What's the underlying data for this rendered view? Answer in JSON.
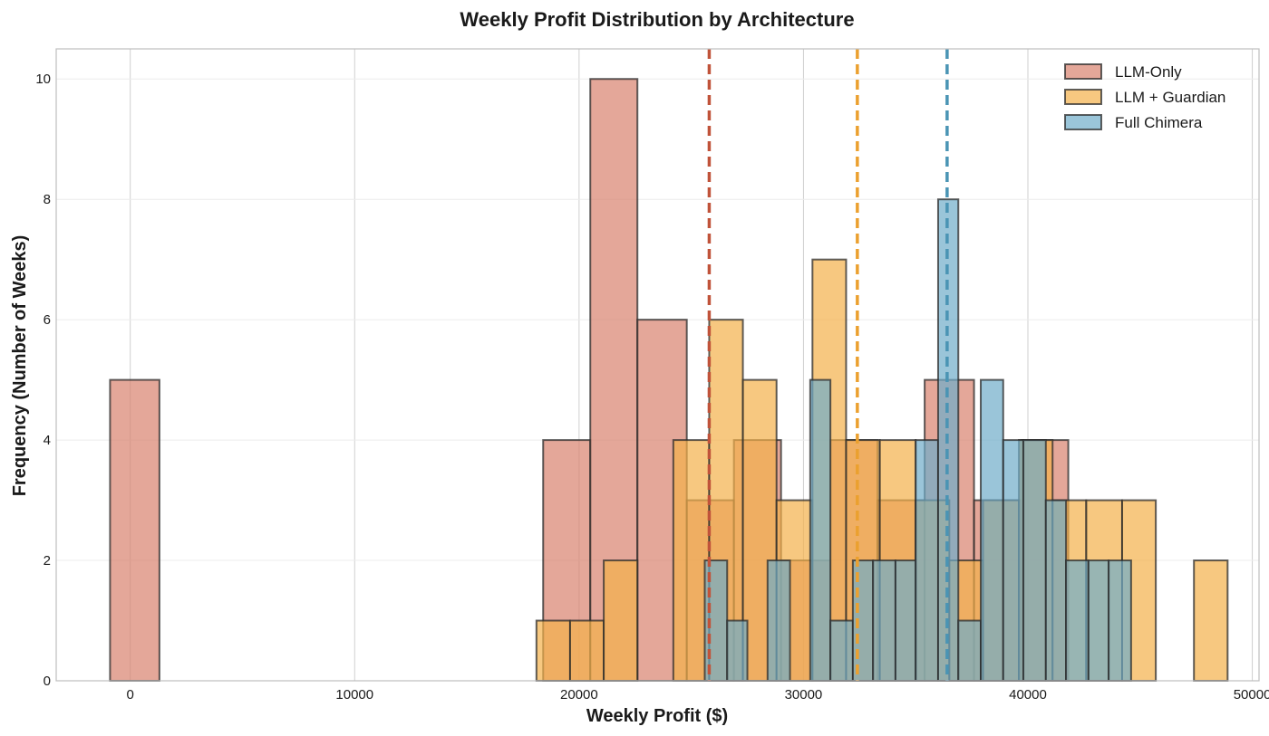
{
  "chart_data": {
    "type": "bar",
    "subtype": "overlapping-histogram",
    "title": "Weekly Profit Distribution by Architecture",
    "xlabel": "Weekly Profit ($)",
    "ylabel": "Frequency (Number of Weeks)",
    "xlim": [
      -3300,
      50300
    ],
    "ylim": [
      0,
      10.5
    ],
    "xticks": [
      0,
      10000,
      20000,
      30000,
      40000,
      50000
    ],
    "yticks": [
      0,
      2,
      4,
      6,
      8,
      10
    ],
    "grid": true,
    "legend_position": "top-right",
    "series": [
      {
        "name": "LLM-Only",
        "color": "#d9826e",
        "mean_line": 25800,
        "mean_color": "#c0533a",
        "bins": [
          {
            "x0": -900,
            "x1": 1300,
            "count": 5
          },
          {
            "x0": 18400,
            "x1": 20500,
            "count": 4
          },
          {
            "x0": 20500,
            "x1": 22600,
            "count": 10
          },
          {
            "x0": 22600,
            "x1": 24800,
            "count": 6
          },
          {
            "x0": 24800,
            "x1": 26900,
            "count": 3
          },
          {
            "x0": 26900,
            "x1": 29000,
            "count": 4
          },
          {
            "x0": 29000,
            "x1": 31200,
            "count": 2
          },
          {
            "x0": 31200,
            "x1": 33300,
            "count": 4
          },
          {
            "x0": 33300,
            "x1": 35400,
            "count": 3
          },
          {
            "x0": 35400,
            "x1": 37600,
            "count": 5
          },
          {
            "x0": 37600,
            "x1": 39700,
            "count": 3
          },
          {
            "x0": 39700,
            "x1": 41800,
            "count": 4
          },
          {
            "x0": 41800,
            "x1": 42000,
            "count": 0
          }
        ]
      },
      {
        "name": "LLM + Guardian",
        "color": "#f4b04a",
        "mean_line": 32400,
        "mean_color": "#eba02f",
        "bins": [
          {
            "x0": 18100,
            "x1": 19600,
            "count": 1
          },
          {
            "x0": 19600,
            "x1": 21100,
            "count": 1
          },
          {
            "x0": 21100,
            "x1": 22600,
            "count": 2
          },
          {
            "x0": 24200,
            "x1": 25800,
            "count": 4
          },
          {
            "x0": 25800,
            "x1": 27300,
            "count": 6
          },
          {
            "x0": 27300,
            "x1": 28800,
            "count": 5
          },
          {
            "x0": 28800,
            "x1": 30400,
            "count": 3
          },
          {
            "x0": 30400,
            "x1": 31900,
            "count": 7
          },
          {
            "x0": 31900,
            "x1": 33400,
            "count": 4
          },
          {
            "x0": 33400,
            "x1": 35000,
            "count": 4
          },
          {
            "x0": 35000,
            "x1": 36500,
            "count": 3
          },
          {
            "x0": 36500,
            "x1": 38000,
            "count": 2
          },
          {
            "x0": 38000,
            "x1": 39600,
            "count": 3
          },
          {
            "x0": 39600,
            "x1": 41100,
            "count": 4
          },
          {
            "x0": 41100,
            "x1": 42600,
            "count": 3
          },
          {
            "x0": 42600,
            "x1": 44200,
            "count": 3
          },
          {
            "x0": 44200,
            "x1": 45700,
            "count": 3
          },
          {
            "x0": 47400,
            "x1": 48900,
            "count": 2
          }
        ]
      },
      {
        "name": "Full Chimera",
        "color": "#6fadc9",
        "mean_line": 36400,
        "mean_color": "#4a94b4",
        "bins": [
          {
            "x0": 25600,
            "x1": 26600,
            "count": 2
          },
          {
            "x0": 26600,
            "x1": 27500,
            "count": 1
          },
          {
            "x0": 28400,
            "x1": 29400,
            "count": 2
          },
          {
            "x0": 30300,
            "x1": 31200,
            "count": 5
          },
          {
            "x0": 31200,
            "x1": 32200,
            "count": 1
          },
          {
            "x0": 32200,
            "x1": 33100,
            "count": 2
          },
          {
            "x0": 33100,
            "x1": 34100,
            "count": 2
          },
          {
            "x0": 34100,
            "x1": 35000,
            "count": 2
          },
          {
            "x0": 35000,
            "x1": 36000,
            "count": 4
          },
          {
            "x0": 36000,
            "x1": 36900,
            "count": 8
          },
          {
            "x0": 36900,
            "x1": 37900,
            "count": 1
          },
          {
            "x0": 37900,
            "x1": 38900,
            "count": 5
          },
          {
            "x0": 38900,
            "x1": 39800,
            "count": 4
          },
          {
            "x0": 39800,
            "x1": 40800,
            "count": 4
          },
          {
            "x0": 40800,
            "x1": 41700,
            "count": 3
          },
          {
            "x0": 41700,
            "x1": 42700,
            "count": 2
          },
          {
            "x0": 42700,
            "x1": 43600,
            "count": 2
          },
          {
            "x0": 43600,
            "x1": 44600,
            "count": 2
          }
        ]
      }
    ]
  }
}
